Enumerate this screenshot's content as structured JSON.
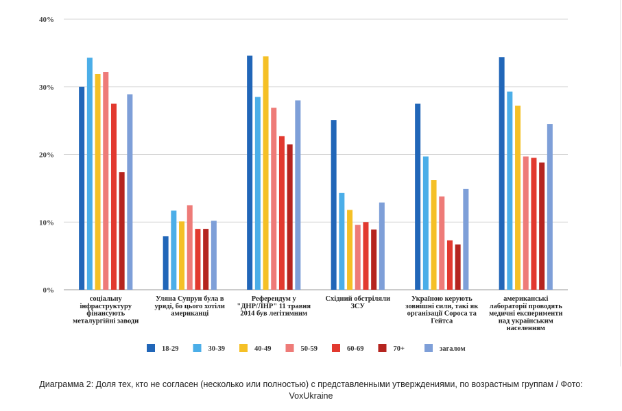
{
  "chart_data": {
    "type": "bar",
    "ylim": [
      0,
      40
    ],
    "yticks": [
      "0%",
      "10%",
      "20%",
      "30%",
      "40%"
    ],
    "grid": true,
    "legend_position": "bottom",
    "categories": [
      [
        "соціальну",
        "інфраструктуру",
        "фінансують",
        "металургійні заводи"
      ],
      [
        "Уляна Супрун була в",
        "уряді, бо цього хотіли",
        "американці"
      ],
      [
        "Референдум у",
        "\"ДНР/ЛНР\" 11 травня",
        "2014 був легітимним"
      ],
      [
        "Східний обстріляли",
        "ЗСУ"
      ],
      [
        "Україною керують",
        "зовнішні сили, такі як",
        "організації Сороса та",
        "Гейтса"
      ],
      [
        "американські",
        "лабораторії проводять",
        "медичні експерименти",
        "над українським",
        "населенням"
      ]
    ],
    "series": [
      {
        "name": "18-29",
        "color": "#2166b8",
        "values": [
          30.0,
          7.9,
          34.6,
          25.1,
          27.5,
          34.4
        ]
      },
      {
        "name": "30-39",
        "color": "#4baee8",
        "values": [
          34.3,
          11.7,
          28.5,
          14.3,
          19.7,
          29.3
        ]
      },
      {
        "name": "40-49",
        "color": "#f5c026",
        "values": [
          31.9,
          10.1,
          34.5,
          11.8,
          16.2,
          27.2
        ]
      },
      {
        "name": "50-59",
        "color": "#ee7b78",
        "values": [
          32.2,
          12.5,
          26.9,
          9.6,
          13.8,
          19.7
        ]
      },
      {
        "name": "60-69",
        "color": "#e2392f",
        "values": [
          27.5,
          9.0,
          22.7,
          10.0,
          7.3,
          19.5
        ]
      },
      {
        "name": "70+",
        "color": "#b5241f",
        "values": [
          17.4,
          9.0,
          21.5,
          8.9,
          6.7,
          18.8
        ]
      },
      {
        "name": "загалом",
        "color": "#7e9fd8",
        "values": [
          28.9,
          10.2,
          28.0,
          12.9,
          14.9,
          24.5
        ]
      }
    ]
  },
  "caption": "Диаграмма 2: Доля тех, кто не согласен (несколько или полностью) с представленными утверждениями, по возрастным группам / Фото: VoxUkraine"
}
